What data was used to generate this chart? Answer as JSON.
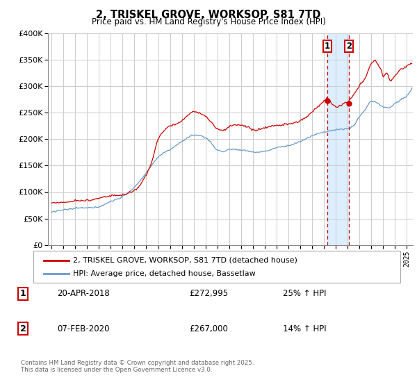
{
  "title": "2, TRISKEL GROVE, WORKSOP, S81 7TD",
  "subtitle": "Price paid vs. HM Land Registry's House Price Index (HPI)",
  "legend_line1": "2, TRISKEL GROVE, WORKSOP, S81 7TD (detached house)",
  "legend_line2": "HPI: Average price, detached house, Bassetlaw",
  "sale1_date": "20-APR-2018",
  "sale1_price": "£272,995",
  "sale1_hpi": "25% ↑ HPI",
  "sale1_year": 2018.29,
  "sale1_value": 272995,
  "sale2_date": "07-FEB-2020",
  "sale2_price": "£267,000",
  "sale2_hpi": "14% ↑ HPI",
  "sale2_year": 2020.1,
  "sale2_value": 267000,
  "footer": "Contains HM Land Registry data © Crown copyright and database right 2025.\nThis data is licensed under the Open Government Licence v3.0.",
  "ylim": [
    0,
    400000
  ],
  "yticks": [
    0,
    50000,
    100000,
    150000,
    200000,
    250000,
    300000,
    350000,
    400000
  ],
  "xlim_start": 1994.7,
  "xlim_end": 2025.5,
  "line_color_red": "#cc0000",
  "line_color_blue": "#6699cc",
  "background_color": "#ffffff",
  "grid_color": "#cccccc",
  "shade_color": "#ddeeff"
}
